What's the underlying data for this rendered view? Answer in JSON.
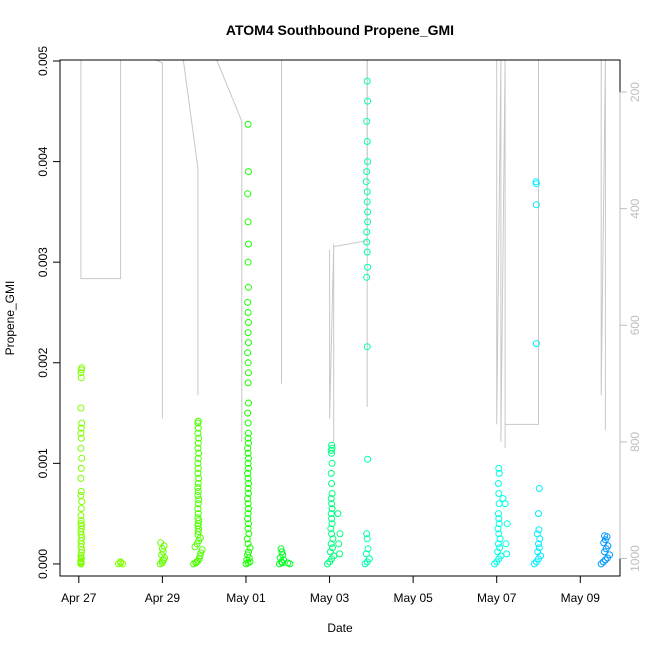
{
  "chart_data": {
    "type": "scatter",
    "title": "ATOM4 Southbound Propene_GMI",
    "xlabel": "Date",
    "ylabel": "Propene_GMI",
    "x_tick_labels": [
      "Apr 27",
      "Apr 29",
      "May 01",
      "May 03",
      "May 05",
      "May 07",
      "May 09"
    ],
    "x_tick_values": [
      0,
      2,
      4,
      6,
      8,
      10,
      12
    ],
    "xlim": [
      -0.45,
      12.95
    ],
    "ylim": [
      -0.00012,
      0.00501
    ],
    "y_ticks": [
      0.0,
      0.001,
      0.002,
      0.003,
      0.004,
      0.005
    ],
    "y_tick_labels": [
      "0.000",
      "0.001",
      "0.002",
      "0.003",
      "0.004",
      "0.005"
    ],
    "right_axis": {
      "description": "pressure (inverted, grey flight-track lines)",
      "ticks": [
        200,
        400,
        600,
        800,
        1000
      ],
      "tick_labels": [
        "200",
        "400",
        "600",
        "800",
        "1000"
      ],
      "range": [
        145,
        1030
      ],
      "color": "#bebebe"
    },
    "series": [
      {
        "color": "#7fff00",
        "x": [
          0.05,
          0.05,
          0.06,
          0.05,
          0.06,
          0.07,
          0.05,
          0.06,
          0.05,
          0.07,
          0.06,
          0.05,
          0.06,
          0.07,
          0.05,
          0.06,
          0.05,
          0.06,
          0.07,
          0.05,
          0.06,
          0.05,
          0.06,
          0.07,
          0.05,
          0.06,
          0.05,
          0.06,
          0.07,
          0.05,
          0.06,
          0.05,
          0.06,
          0.07,
          0.05,
          0.06,
          0.05,
          0.06
        ],
        "y": [
          0.0,
          2e-05,
          5e-05,
          8e-05,
          0.00011,
          0.00014,
          0.00017,
          0.0002,
          0.00023,
          0.00026,
          0.00029,
          0.00032,
          0.00035,
          0.00038,
          0.0004,
          0.00043,
          0.00048,
          0.00055,
          0.00062,
          0.00068,
          0.00072,
          0.00085,
          0.00095,
          0.00105,
          0.00115,
          0.00125,
          0.0013,
          0.00135,
          0.0014,
          0.00155,
          0.00185,
          0.0019,
          0.00193,
          0.00195,
          0.0,
          1e-05,
          3e-05,
          6e-05
        ]
      },
      {
        "color": "#7fff00",
        "x": [
          0.95,
          1.0,
          1.05,
          1.0
        ],
        "y": [
          0.0,
          1e-05,
          0.0,
          2e-05
        ]
      },
      {
        "color": "#66ff00",
        "x": [
          1.95,
          2.0,
          2.05,
          1.98,
          2.02,
          2.0,
          2.04,
          1.96,
          2.0,
          2.03
        ],
        "y": [
          0.0,
          3e-05,
          6e-05,
          9e-05,
          0.00012,
          0.00015,
          0.00018,
          0.00021,
          1e-05,
          4e-05
        ]
      },
      {
        "color": "#4dff00",
        "x": [
          2.75,
          2.8,
          2.82,
          2.85,
          2.88,
          2.9,
          2.92,
          2.95,
          2.78,
          2.83,
          2.87,
          2.91,
          2.85,
          2.86,
          2.87,
          2.85,
          2.86,
          2.87,
          2.85,
          2.86,
          2.85,
          2.86,
          2.87,
          2.85,
          2.86,
          2.85,
          2.86,
          2.87,
          2.85,
          2.86,
          2.85,
          2.86,
          2.87,
          2.85,
          2.86,
          2.87,
          2.85,
          2.86,
          2.85,
          2.86
        ],
        "y": [
          0.0,
          1e-05,
          2e-05,
          3e-05,
          5e-05,
          8e-05,
          0.00011,
          0.00014,
          0.00017,
          0.0002,
          0.00023,
          0.00026,
          0.00029,
          0.00032,
          0.00035,
          0.00038,
          0.0004,
          0.00043,
          0.00046,
          0.0005,
          0.00055,
          0.0006,
          0.00064,
          0.00068,
          0.00072,
          0.00076,
          0.0008,
          0.00085,
          0.0009,
          0.00095,
          0.001,
          0.00105,
          0.0011,
          0.00115,
          0.0012,
          0.00125,
          0.0013,
          0.00135,
          0.0014,
          0.00142
        ]
      },
      {
        "color": "#1aff00",
        "x": [
          4.0,
          4.05,
          4.1,
          4.02,
          4.08,
          4.04,
          4.06,
          4.1,
          4.05,
          4.03,
          4.07,
          4.05,
          4.06,
          4.04,
          4.05,
          4.06,
          4.05,
          4.04,
          4.06,
          4.05,
          4.06,
          4.05,
          4.04,
          4.06,
          4.05,
          4.06,
          4.05,
          4.04,
          4.06,
          4.05,
          4.06,
          4.05,
          4.04,
          4.06,
          4.05,
          4.06,
          4.05,
          4.04,
          4.06,
          4.05,
          4.06,
          4.05,
          4.04,
          4.06,
          4.05,
          4.06,
          4.05,
          4.04,
          4.06,
          4.05
        ],
        "y": [
          0.0,
          1e-05,
          2e-05,
          4e-05,
          6e-05,
          9e-05,
          0.00012,
          0.00016,
          0.0002,
          0.00025,
          0.0003,
          0.00035,
          0.0004,
          0.00045,
          0.0005,
          0.00055,
          0.0006,
          0.00065,
          0.0007,
          0.00075,
          0.0008,
          0.00085,
          0.0009,
          0.00095,
          0.001,
          0.00105,
          0.0011,
          0.00115,
          0.0012,
          0.00125,
          0.0013,
          0.0014,
          0.0015,
          0.0016,
          0.0018,
          0.0019,
          0.002,
          0.0021,
          0.0022,
          0.0023,
          0.0024,
          0.0025,
          0.0026,
          0.00275,
          0.003,
          0.00318,
          0.0034,
          0.00368,
          0.0039,
          0.00437
        ]
      },
      {
        "color": "#00ff20",
        "x": [
          4.8,
          4.85,
          4.9,
          4.82,
          4.88,
          4.86,
          4.84,
          4.87,
          5.0,
          5.05
        ],
        "y": [
          0.0,
          2e-05,
          4e-05,
          6e-05,
          9e-05,
          0.00012,
          0.00015,
          1e-05,
          1e-05,
          0.0
        ]
      },
      {
        "color": "#00ff80",
        "x": [
          5.95,
          6.0,
          6.05,
          6.1,
          6.02,
          6.07,
          6.04,
          6.08,
          6.05,
          6.03,
          6.06,
          6.05,
          6.04,
          6.06,
          6.05,
          6.04,
          6.06,
          6.05,
          6.04,
          6.06,
          6.05,
          6.04,
          6.06,
          6.05,
          6.2,
          6.25,
          6.22,
          6.24
        ],
        "y": [
          0.0,
          2e-05,
          5e-05,
          8e-05,
          0.00012,
          0.00016,
          0.0002,
          0.00025,
          0.0003,
          0.00035,
          0.0004,
          0.00045,
          0.0005,
          0.00055,
          0.0006,
          0.00065,
          0.0007,
          0.0008,
          0.0009,
          0.001,
          0.0011,
          0.00113,
          0.00115,
          0.00118,
          0.0005,
          0.0003,
          0.0002,
          0.0001
        ]
      },
      {
        "color": "#00ffb0",
        "x": [
          6.85,
          6.9,
          6.95,
          6.88,
          6.92,
          6.9,
          6.89,
          6.91,
          6.9,
          6.89,
          6.91,
          6.9,
          6.89,
          6.91,
          6.9,
          6.89,
          6.91,
          6.9,
          6.89,
          6.91,
          6.9,
          6.89,
          6.91,
          6.9,
          6.88
        ],
        "y": [
          0.0,
          2e-05,
          5e-05,
          0.0001,
          0.00015,
          0.00025,
          0.0003,
          0.00104,
          0.00216,
          0.00285,
          0.00295,
          0.0031,
          0.0033,
          0.0035,
          0.0037,
          0.0039,
          0.004,
          0.0042,
          0.0044,
          0.0046,
          0.0048,
          0.0032,
          0.0034,
          0.0036,
          0.0038
        ]
      },
      {
        "color": "#00ffe5",
        "x": [
          9.95,
          10.0,
          10.05,
          10.1,
          10.02,
          10.07,
          10.04,
          10.08,
          10.05,
          10.03,
          10.06,
          10.05,
          10.04,
          10.06,
          10.05,
          10.04,
          10.06,
          10.05,
          10.2,
          10.25,
          10.22,
          10.24,
          10.15
        ],
        "y": [
          0.0,
          2e-05,
          5e-05,
          8e-05,
          0.00012,
          0.00016,
          0.0002,
          0.00025,
          0.0003,
          0.00035,
          0.0004,
          0.00045,
          0.0005,
          0.0006,
          0.0007,
          0.0008,
          0.0009,
          0.00095,
          0.0006,
          0.0004,
          0.0002,
          0.0001,
          0.00065
        ]
      },
      {
        "color": "#00eeff",
        "x": [
          10.9,
          10.95,
          11.0,
          11.05,
          10.98,
          11.02,
          11.0,
          11.03,
          10.97,
          11.01,
          11.0,
          11.02,
          10.95,
          10.95,
          10.94,
          10.95
        ],
        "y": [
          0.0,
          2e-05,
          5e-05,
          8e-05,
          0.00012,
          0.00016,
          0.0002,
          0.00025,
          0.0003,
          0.00034,
          0.0005,
          0.00075,
          0.00219,
          0.00357,
          0.0038,
          0.00378
        ]
      },
      {
        "color": "#0099ff",
        "x": [
          12.5,
          12.55,
          12.6,
          12.65,
          12.7,
          12.58,
          12.62,
          12.66,
          12.56,
          12.6,
          12.64,
          12.58
        ],
        "y": [
          0.0,
          2e-05,
          4e-05,
          6e-05,
          9e-05,
          0.00012,
          0.00015,
          0.00018,
          0.00021,
          0.00024,
          0.00027,
          0.00028
        ]
      }
    ]
  }
}
